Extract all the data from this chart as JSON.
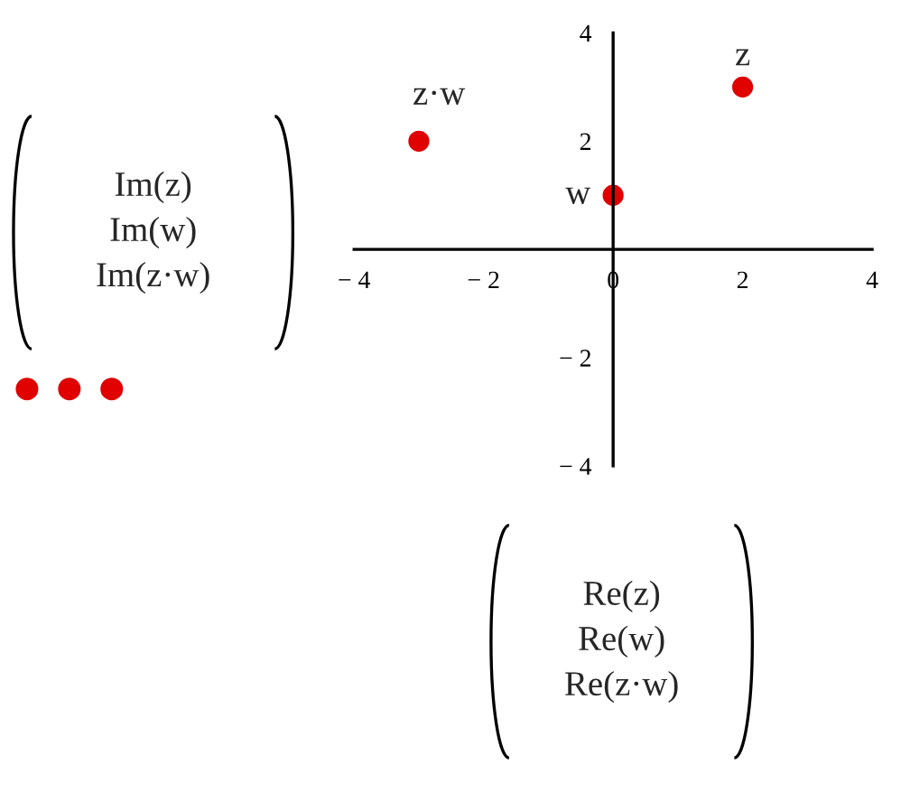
{
  "chart_data": {
    "type": "scatter",
    "x": [
      2,
      0,
      -3
    ],
    "series": [
      {
        "color": "#e00000",
        "values": [
          3,
          1,
          2
        ]
      }
    ],
    "xlabel": "Re(z)\nRe(w)\nRe(z·w)",
    "ylabel": "Im(z)\nIm(w)\nIm(z·w)",
    "annotations": [
      {
        "text": "z",
        "x": 2,
        "y": 3
      },
      {
        "text": "w",
        "x": 0,
        "y": 1
      },
      {
        "text": "z·w",
        "x": -3,
        "y": 2
      }
    ],
    "xlim": [
      -4,
      4
    ],
    "ylim": [
      -4,
      4
    ],
    "xticks": [
      -4,
      -2,
      0,
      2,
      4
    ],
    "yticks": [
      -4,
      -2,
      {
        "value": 0,
        "label": null
      },
      2,
      4
    ],
    "marker": "circle",
    "grid": false,
    "legend": false
  }
}
